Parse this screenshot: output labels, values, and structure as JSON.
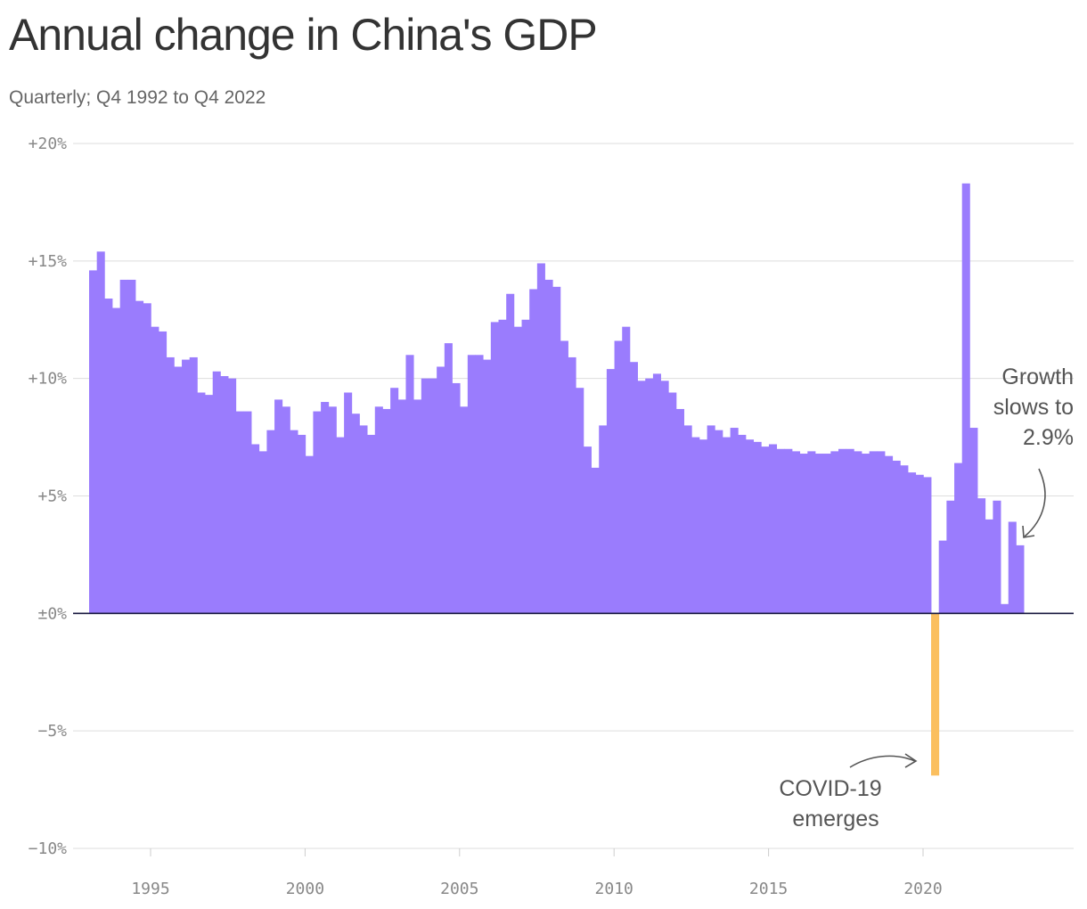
{
  "header": {
    "title": "Annual change in China's GDP",
    "subtitle": "Quarterly; Q4 1992 to Q4 2022"
  },
  "colors": {
    "bar": "#9a7cfd",
    "covid_bar": "#fbbf5f",
    "zero_line": "#1a1a40",
    "grid": "#dddddd",
    "axis_text": "#888888",
    "annotation_text": "#555555"
  },
  "chart_data": {
    "type": "bar",
    "title": "Annual change in China's GDP",
    "subtitle": "Quarterly; Q4 1992 to Q4 2022",
    "xlabel": "",
    "ylabel": "",
    "x_start": "Q4 1992",
    "x_end": "Q4 2022",
    "xlim": [
      1993,
      2024.5
    ],
    "ylim": [
      -10,
      20
    ],
    "y_ticks": [
      {
        "value": 20,
        "label": "+20%"
      },
      {
        "value": 15,
        "label": "+15%"
      },
      {
        "value": 10,
        "label": "+10%"
      },
      {
        "value": 5,
        "label": "+5%"
      },
      {
        "value": 0,
        "label": "±0%"
      },
      {
        "value": -5,
        "label": "−5%"
      },
      {
        "value": -10,
        "label": "−10%"
      }
    ],
    "x_ticks": [
      {
        "value": 1995,
        "label": "1995"
      },
      {
        "value": 2000,
        "label": "2000"
      },
      {
        "value": 2005,
        "label": "2005"
      },
      {
        "value": 2010,
        "label": "2010"
      },
      {
        "value": 2015,
        "label": "2015"
      },
      {
        "value": 2020,
        "label": "2020"
      }
    ],
    "grid": true,
    "highlight": [
      {
        "quarter": "Q1 2020",
        "value": -6.9
      }
    ],
    "quarters": [
      "Q4 1992",
      "Q1 1993",
      "Q2 1993",
      "Q3 1993",
      "Q4 1993",
      "Q1 1994",
      "Q2 1994",
      "Q3 1994",
      "Q4 1994",
      "Q1 1995",
      "Q2 1995",
      "Q3 1995",
      "Q4 1995",
      "Q1 1996",
      "Q2 1996",
      "Q3 1996",
      "Q4 1996",
      "Q1 1997",
      "Q2 1997",
      "Q3 1997",
      "Q4 1997",
      "Q1 1998",
      "Q2 1998",
      "Q3 1998",
      "Q4 1998",
      "Q1 1999",
      "Q2 1999",
      "Q3 1999",
      "Q4 1999",
      "Q1 2000",
      "Q2 2000",
      "Q3 2000",
      "Q4 2000",
      "Q1 2001",
      "Q2 2001",
      "Q3 2001",
      "Q4 2001",
      "Q1 2002",
      "Q2 2002",
      "Q3 2002",
      "Q4 2002",
      "Q1 2003",
      "Q2 2003",
      "Q3 2003",
      "Q4 2003",
      "Q1 2004",
      "Q2 2004",
      "Q3 2004",
      "Q4 2004",
      "Q1 2005",
      "Q2 2005",
      "Q3 2005",
      "Q4 2005",
      "Q1 2006",
      "Q2 2006",
      "Q3 2006",
      "Q4 2006",
      "Q1 2007",
      "Q2 2007",
      "Q3 2007",
      "Q4 2007",
      "Q1 2008",
      "Q2 2008",
      "Q3 2008",
      "Q4 2008",
      "Q1 2009",
      "Q2 2009",
      "Q3 2009",
      "Q4 2009",
      "Q1 2010",
      "Q2 2010",
      "Q3 2010",
      "Q4 2010",
      "Q1 2011",
      "Q2 2011",
      "Q3 2011",
      "Q4 2011",
      "Q1 2012",
      "Q2 2012",
      "Q3 2012",
      "Q4 2012",
      "Q1 2013",
      "Q2 2013",
      "Q3 2013",
      "Q4 2013",
      "Q1 2014",
      "Q2 2014",
      "Q3 2014",
      "Q4 2014",
      "Q1 2015",
      "Q2 2015",
      "Q3 2015",
      "Q4 2015",
      "Q1 2016",
      "Q2 2016",
      "Q3 2016",
      "Q4 2016",
      "Q1 2017",
      "Q2 2017",
      "Q3 2017",
      "Q4 2017",
      "Q1 2018",
      "Q2 2018",
      "Q3 2018",
      "Q4 2018",
      "Q1 2019",
      "Q2 2019",
      "Q3 2019",
      "Q4 2019",
      "Q1 2020",
      "Q2 2020",
      "Q3 2020",
      "Q4 2020",
      "Q1 2021",
      "Q2 2021",
      "Q3 2021",
      "Q4 2021",
      "Q1 2022",
      "Q2 2022",
      "Q3 2022",
      "Q4 2022"
    ],
    "values": [
      14.6,
      15.4,
      13.4,
      13.0,
      14.2,
      14.2,
      13.3,
      13.2,
      12.2,
      12.0,
      10.9,
      10.5,
      10.8,
      10.9,
      9.4,
      9.3,
      10.3,
      10.1,
      10.0,
      8.6,
      8.6,
      7.2,
      6.9,
      7.8,
      9.1,
      8.8,
      7.8,
      7.6,
      6.7,
      8.6,
      9.0,
      8.8,
      7.5,
      9.4,
      8.5,
      8.0,
      7.6,
      8.8,
      8.7,
      9.6,
      9.1,
      11.0,
      9.1,
      10.0,
      10.0,
      10.5,
      11.5,
      9.8,
      8.8,
      11.0,
      11.0,
      10.8,
      12.4,
      12.5,
      13.6,
      12.2,
      12.5,
      13.8,
      14.9,
      14.2,
      13.9,
      11.6,
      10.9,
      9.6,
      7.1,
      6.2,
      8.0,
      10.4,
      11.6,
      12.2,
      10.7,
      9.9,
      10.0,
      10.2,
      9.9,
      9.4,
      8.7,
      8.0,
      7.5,
      7.4,
      8.0,
      7.8,
      7.5,
      7.9,
      7.6,
      7.4,
      7.3,
      7.1,
      7.2,
      7.0,
      7.0,
      6.9,
      6.8,
      6.9,
      6.8,
      6.8,
      6.9,
      7.0,
      7.0,
      6.9,
      6.8,
      6.9,
      6.9,
      6.7,
      6.5,
      6.3,
      6.0,
      5.9,
      5.8,
      -6.9,
      3.1,
      4.8,
      6.4,
      18.3,
      7.9,
      4.9,
      4.0,
      4.8,
      0.4,
      3.9,
      2.9
    ]
  },
  "annotations": {
    "covid": {
      "lines": [
        "COVID-19",
        "emerges"
      ]
    },
    "growth": {
      "lines": [
        "Growth",
        "slows to",
        "2.9%"
      ]
    }
  }
}
